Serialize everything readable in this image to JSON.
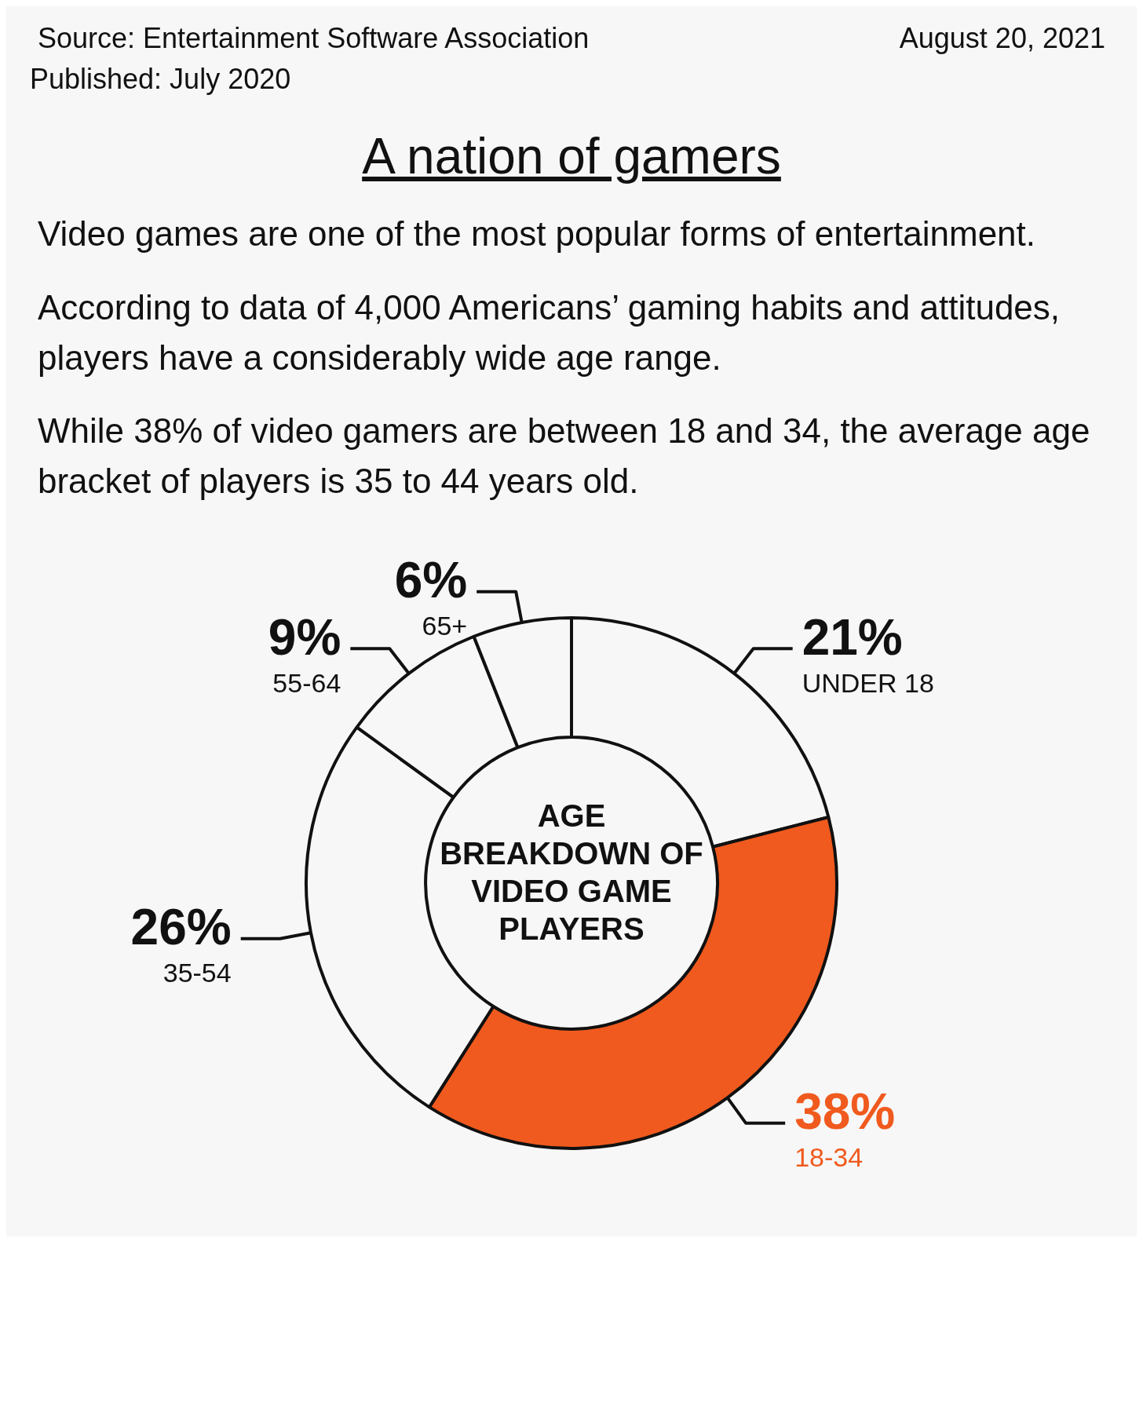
{
  "chart_data": {
    "type": "donut",
    "title": "A nation of gamers",
    "subtitle": "AGE BREAKDOWN OF VIDEO GAME PLAYERS",
    "categories": [
      "UNDER 18",
      "18-34",
      "35-54",
      "55-64",
      "65+"
    ],
    "values": [
      21,
      38,
      26,
      9,
      6
    ],
    "colors": [
      "#f7f7f7",
      "#f05a1e",
      "#f7f7f7",
      "#f7f7f7",
      "#f7f7f7"
    ],
    "value_labels": [
      "21%",
      "38%",
      "26%",
      "9%",
      "6%"
    ],
    "legend": false,
    "annotations": [
      "Source: Entertainment Software Association",
      "August 20, 2021",
      "Published: July 2020",
      "Video games are one of the most popular forms of entertainment.",
      "According to data of 4,000 Americans’ gaming habits and attitudes, players have a considerably wide age range.",
      "While 38% of video gamers are between 18 and 34, the average age bracket of players is 35 to 44 years old."
    ]
  }
}
